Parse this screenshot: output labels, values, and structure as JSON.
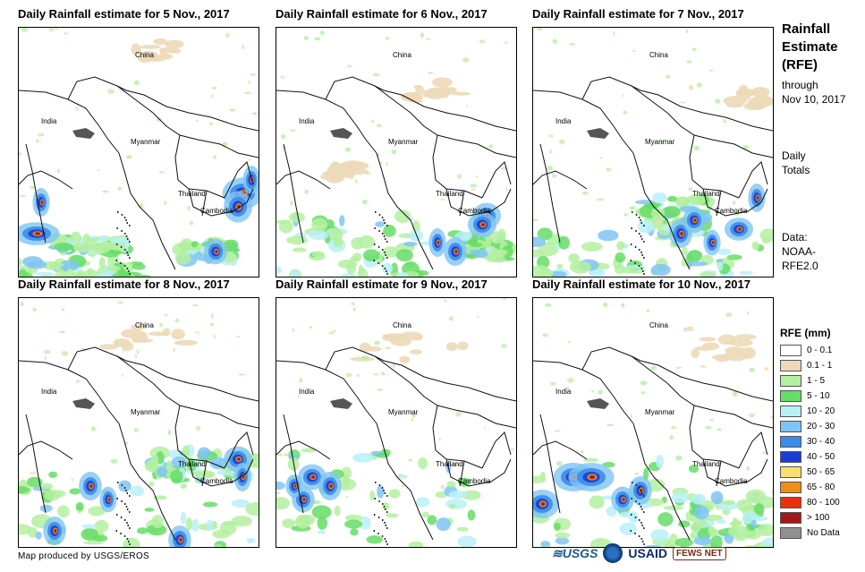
{
  "panels": [
    {
      "title": "Daily Rainfall estimate for 5 Nov., 2017",
      "variant": 0
    },
    {
      "title": "Daily Rainfall estimate for 6 Nov., 2017",
      "variant": 1
    },
    {
      "title": "Daily Rainfall estimate for 7 Nov., 2017",
      "variant": 2
    },
    {
      "title": "Daily Rainfall estimate for 8 Nov., 2017",
      "variant": 3
    },
    {
      "title": "Daily Rainfall estimate for 9 Nov., 2017",
      "variant": 4
    },
    {
      "title": "Daily Rainfall estimate for 10 Nov., 2017",
      "variant": 5
    }
  ],
  "map_labels": {
    "china": "China",
    "india": "India",
    "myanmar": "Myanmar",
    "thailand": "Thailand",
    "cambodia": "Cambodia"
  },
  "sidebar": {
    "title_line1": "Rainfall",
    "title_line2": "Estimate",
    "title_line3": "(RFE)",
    "through_line1": "through",
    "through_line2": "Nov 10, 2017",
    "daily_line1": "Daily",
    "daily_line2": "Totals",
    "data_line1": "Data:",
    "data_line2": "NOAA-",
    "data_line3": "RFE2.0"
  },
  "legend": {
    "title": "RFE (mm)",
    "items": [
      {
        "label": "0 - 0.1",
        "color": "#ffffff"
      },
      {
        "label": "0.1 - 1",
        "color": "#ecd9b8"
      },
      {
        "label": "1 - 5",
        "color": "#b4f0a0"
      },
      {
        "label": "5 - 10",
        "color": "#66dd66"
      },
      {
        "label": "10 - 20",
        "color": "#b8f0f8"
      },
      {
        "label": "20 - 30",
        "color": "#80c4f4"
      },
      {
        "label": "30 - 40",
        "color": "#3c8ce8"
      },
      {
        "label": "40 - 50",
        "color": "#1c3cd8"
      },
      {
        "label": "50 - 65",
        "color": "#f8e070"
      },
      {
        "label": "65 - 80",
        "color": "#f09010"
      },
      {
        "label": "80 - 100",
        "color": "#e83010"
      },
      {
        "label": "> 100",
        "color": "#a01818"
      },
      {
        "label": "No Data",
        "color": "#909090"
      }
    ]
  },
  "footer": {
    "credit": "Map produced by USGS/EROS"
  },
  "logos": {
    "usgs": "≋USGS",
    "usaid": "USAID",
    "fews": "FEWS NET"
  }
}
